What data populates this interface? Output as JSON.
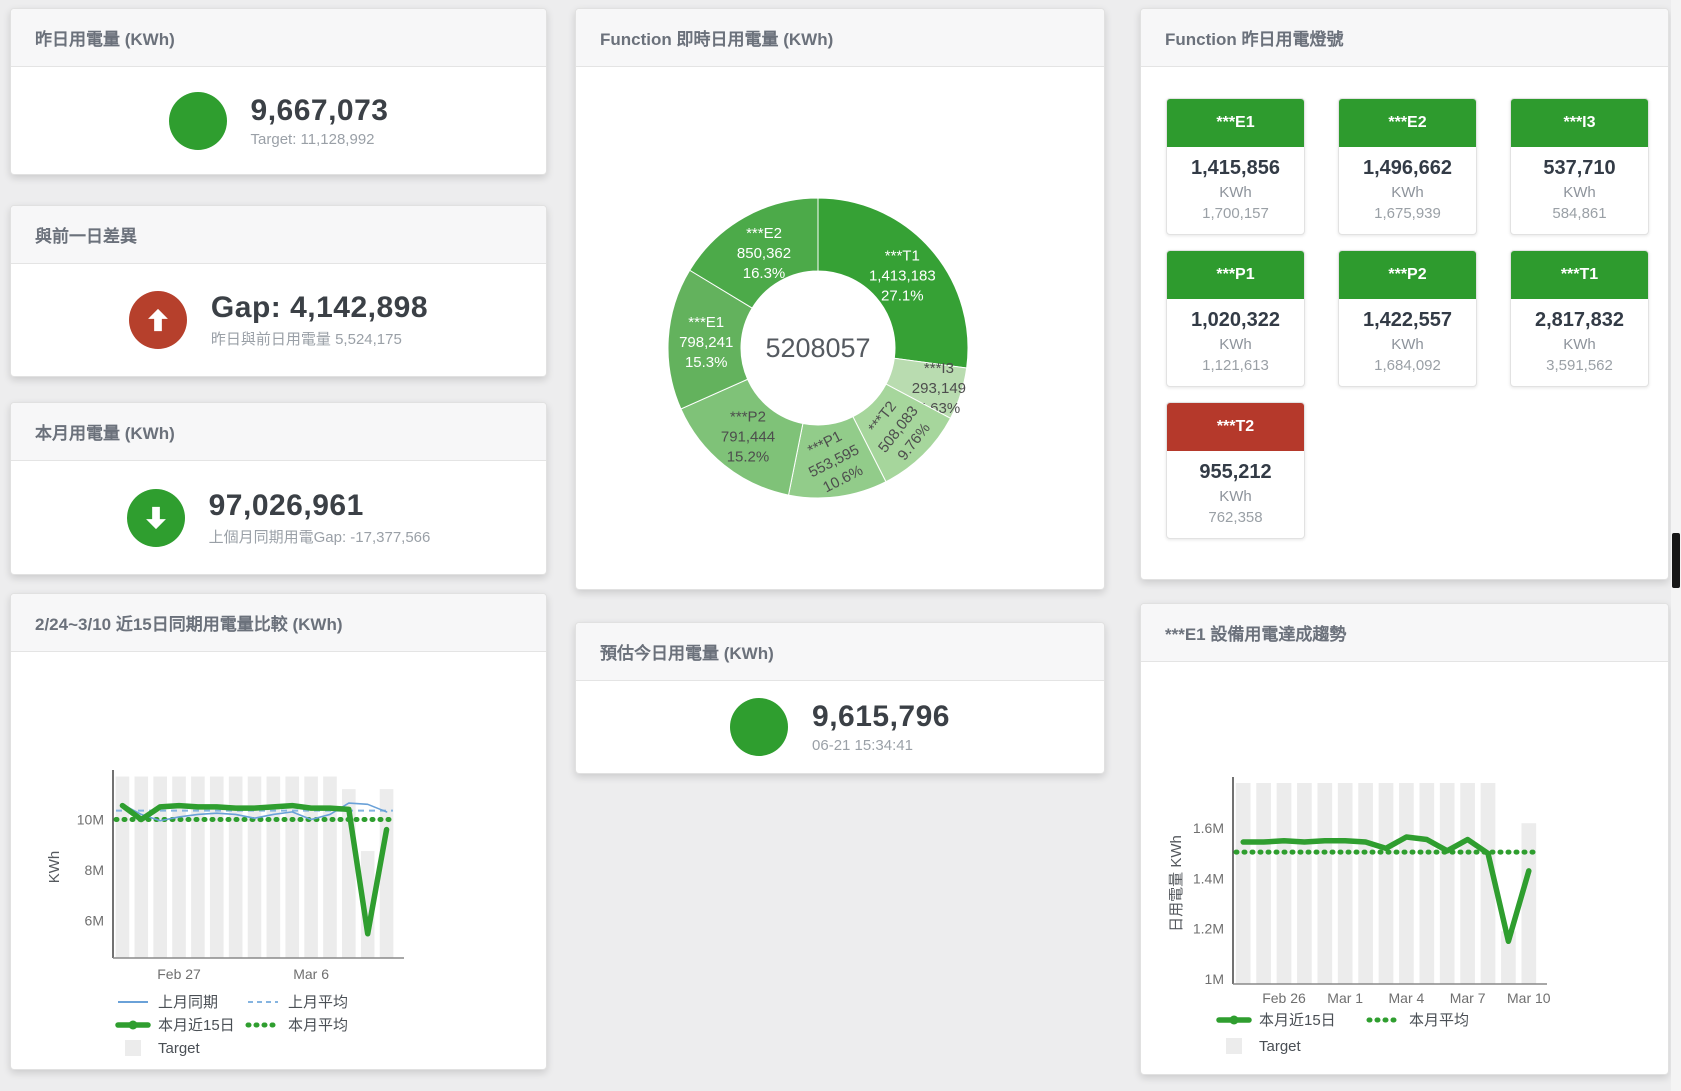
{
  "colors": {
    "green": "#2f9e2f",
    "red": "#b6402c",
    "tile_green": "#2e9b2e",
    "tile_red": "#b5392b",
    "blue": "#6aa1d8",
    "blue_light": "#85b4e0",
    "bar_gray": "#ececec"
  },
  "panels": {
    "yesterday": {
      "title": "昨日用電量 (KWh)",
      "value": "9,667,073",
      "sub": "Target: 11,128,992"
    },
    "day_gap": {
      "title": "與前一日差異",
      "value": "Gap: 4,142,898",
      "sub": "昨日與前日用電量 5,524,175"
    },
    "month": {
      "title": "本月用電量 (KWh)",
      "value": "97,026,961",
      "sub": "上個月同期用電Gap: -17,377,566"
    },
    "compare": {
      "title": "2/24~3/10 近15日同期用電量比較 (KWh)"
    },
    "function_realtime": {
      "title": "Function 即時日用電量 (KWh)"
    },
    "today_estimate": {
      "title": "預估今日用電量 (KWh)",
      "value": "9,615,796",
      "sub": "06-21 15:34:41"
    },
    "function_lights": {
      "title": "Function 昨日用電燈號",
      "unit": "KWh",
      "tiles": [
        {
          "name": "***E1",
          "value": "1,415,856",
          "unit": "KWh",
          "target": "1,700,157",
          "status": "green"
        },
        {
          "name": "***E2",
          "value": "1,496,662",
          "unit": "KWh",
          "target": "1,675,939",
          "status": "green"
        },
        {
          "name": "***I3",
          "value": "537,710",
          "unit": "KWh",
          "target": "584,861",
          "status": "green"
        },
        {
          "name": "***P1",
          "value": "1,020,322",
          "unit": "KWh",
          "target": "1,121,613",
          "status": "green"
        },
        {
          "name": "***P2",
          "value": "1,422,557",
          "unit": "KWh",
          "target": "1,684,092",
          "status": "green"
        },
        {
          "name": "***T1",
          "value": "2,817,832",
          "unit": "KWh",
          "target": "3,591,562",
          "status": "green"
        },
        {
          "name": "***T2",
          "value": "955,212",
          "unit": "KWh",
          "target": "762,358",
          "status": "red"
        }
      ]
    },
    "e1_trend": {
      "title": "***E1 設備用電達成趨勢"
    }
  },
  "chart_data": [
    {
      "type": "pie",
      "title": "Function 即時日用電量 (KWh)",
      "unit": "KWh",
      "center_label": "5208057",
      "slices": [
        {
          "name": "***T1",
          "value": 1413183,
          "value_label": "1,413,183",
          "pct": "27.1%",
          "color": "#36a135",
          "text_color": "#ffffff",
          "rotate": 0,
          "label_r": 112
        },
        {
          "name": "***I3",
          "value": 293149,
          "value_label": "293,149",
          "pct": "5.63%",
          "color": "#b9dcb0",
          "text_color": "#4d4d4d",
          "rotate": 0,
          "label_r": 127
        },
        {
          "name": "***T2",
          "value": 508083,
          "value_label": "508,083",
          "pct": "9.76%",
          "color": "#a6d69c",
          "text_color": "#4d4d4d",
          "rotate": -52,
          "label_r": 113
        },
        {
          "name": "***P1",
          "value": 553595,
          "value_label": "553,595",
          "pct": "10.6%",
          "color": "#92cc8a",
          "text_color": "#4d4d4d",
          "rotate": -27,
          "label_r": 113
        },
        {
          "name": "***P2",
          "value": 791444,
          "value_label": "791,444",
          "pct": "15.2%",
          "color": "#7fc278",
          "text_color": "#4d4d4d",
          "rotate": 0,
          "label_r": 112
        },
        {
          "name": "***E1",
          "value": 798241,
          "value_label": "798,241",
          "pct": "15.3%",
          "color": "#63b25d",
          "text_color": "#ffffff",
          "rotate": 0,
          "label_r": 112
        },
        {
          "name": "***E2",
          "value": 850362,
          "value_label": "850,362",
          "pct": "16.3%",
          "color": "#4caa49",
          "text_color": "#ffffff",
          "rotate": 0,
          "label_r": 110
        }
      ]
    },
    {
      "type": "line",
      "title": "2/24~3/10 近15日同期用電量比較 (KWh)",
      "ylabel": "KWh",
      "ylim": [
        4.52,
        11.72
      ],
      "unit": "M KWh",
      "grid": false,
      "legend_position": "bottom-left",
      "categories": [
        "2/24",
        "2/25",
        "2/26",
        "2/27",
        "2/28",
        "3/1",
        "3/2",
        "3/3",
        "3/4",
        "3/5",
        "3/6",
        "3/7",
        "3/8",
        "3/9",
        "3/10"
      ],
      "yticks": [
        {
          "v": 6,
          "label": "6M"
        },
        {
          "v": 8,
          "label": "8M"
        },
        {
          "v": 10,
          "label": "10M"
        }
      ],
      "xticks": [
        {
          "i": 3,
          "label": "Feb 27"
        },
        {
          "i": 10,
          "label": "Mar 6"
        }
      ],
      "bars": {
        "name": "Target",
        "color": "#ececec",
        "values": [
          11.7,
          11.7,
          11.7,
          11.7,
          11.7,
          11.7,
          11.7,
          11.7,
          11.7,
          11.7,
          11.7,
          11.7,
          11.2,
          8.75,
          11.2
        ]
      },
      "hlines": [
        {
          "name": "上月平均",
          "value": 10.35,
          "color": "#85b4e0",
          "style": "dashed"
        },
        {
          "name": "本月平均",
          "value": 10.0,
          "color": "#2f9e2f",
          "style": "dotted"
        }
      ],
      "lines": [
        {
          "name": "上月同期",
          "color": "#6aa1d8",
          "width": 1.6,
          "values": [
            10.6,
            10.2,
            9.95,
            10.1,
            10.2,
            10.25,
            10.2,
            10.05,
            10.2,
            10.3,
            10.0,
            10.2,
            10.65,
            10.6,
            10.3
          ]
        },
        {
          "name": "本月近15日",
          "color": "#2f9e2f",
          "width": 5.5,
          "values": [
            10.55,
            10.0,
            10.5,
            10.55,
            10.5,
            10.5,
            10.45,
            10.45,
            10.5,
            10.55,
            10.45,
            10.45,
            10.4,
            5.48,
            9.6
          ]
        }
      ],
      "legend": [
        {
          "label": "上月同期",
          "swatch": "line",
          "color": "#6aa1d8"
        },
        {
          "label": "上月平均",
          "swatch": "dashed",
          "color": "#85b4e0"
        },
        {
          "label": "本月近15日",
          "swatch": "thick",
          "color": "#2f9e2f"
        },
        {
          "label": "本月平均",
          "swatch": "dots",
          "color": "#2f9e2f"
        },
        {
          "label": "Target",
          "swatch": "square",
          "color": "#ececec"
        }
      ]
    },
    {
      "type": "line",
      "title": "***E1 設備用電達成趨勢",
      "ylabel": "日用電量 KWh",
      "ylim": [
        0.98,
        1.78
      ],
      "unit": "M KWh",
      "grid": false,
      "legend_position": "bottom-left",
      "categories": [
        "2/24",
        "2/25",
        "2/26",
        "2/27",
        "2/28",
        "3/1",
        "3/2",
        "3/3",
        "3/4",
        "3/5",
        "3/6",
        "3/7",
        "3/8",
        "3/9",
        "3/10"
      ],
      "yticks": [
        {
          "v": 1,
          "label": "1M"
        },
        {
          "v": 1.2,
          "label": "1.2M"
        },
        {
          "v": 1.4,
          "label": "1.4M"
        },
        {
          "v": 1.6,
          "label": "1.6M"
        }
      ],
      "xticks": [
        {
          "i": 2,
          "label": "Feb 26"
        },
        {
          "i": 5,
          "label": "Mar 1"
        },
        {
          "i": 8,
          "label": "Mar 4"
        },
        {
          "i": 11,
          "label": "Mar 7"
        },
        {
          "i": 14,
          "label": "Mar 10"
        }
      ],
      "bars": {
        "name": "Target",
        "color": "#ececec",
        "values": [
          1.78,
          1.78,
          1.78,
          1.78,
          1.78,
          1.78,
          1.78,
          1.78,
          1.78,
          1.78,
          1.78,
          1.78,
          1.78,
          1.19,
          1.62
        ]
      },
      "hlines": [
        {
          "name": "本月平均",
          "value": 1.505,
          "color": "#2f9e2f",
          "style": "dotted"
        }
      ],
      "lines": [
        {
          "name": "本月近15日",
          "color": "#2f9e2f",
          "width": 5.5,
          "values": [
            1.545,
            1.545,
            1.55,
            1.545,
            1.55,
            1.55,
            1.545,
            1.52,
            1.565,
            1.555,
            1.51,
            1.555,
            1.5,
            1.15,
            1.43
          ]
        }
      ],
      "legend": [
        {
          "label": "本月近15日",
          "swatch": "thick",
          "color": "#2f9e2f"
        },
        {
          "label": "本月平均",
          "swatch": "dots",
          "color": "#2f9e2f"
        },
        {
          "label": "Target",
          "swatch": "square",
          "color": "#ececec"
        }
      ]
    }
  ]
}
